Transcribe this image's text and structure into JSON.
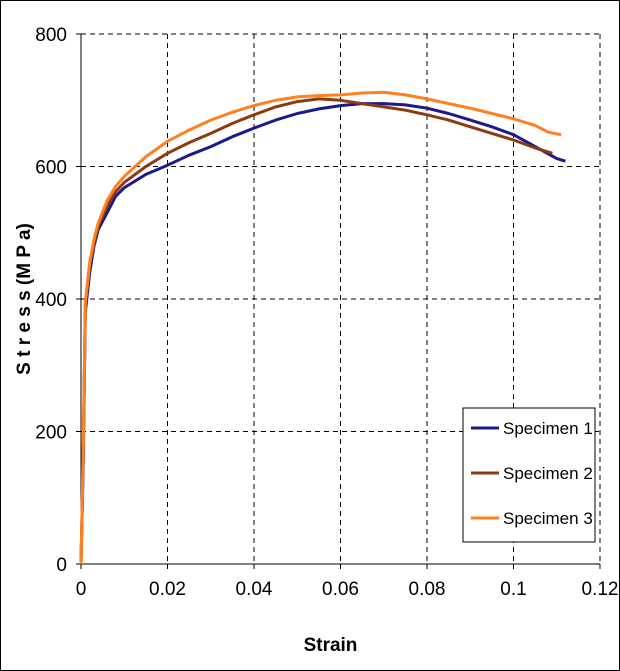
{
  "chart_data": {
    "type": "line",
    "title": "",
    "xlabel": "Strain",
    "ylabel": "S t r e s s (M P a)",
    "xlim": [
      0,
      0.12
    ],
    "ylim": [
      0,
      800
    ],
    "x_ticks": [
      0,
      0.02,
      0.04,
      0.06,
      0.08,
      0.1,
      0.12
    ],
    "y_ticks": [
      0,
      200,
      400,
      600,
      800
    ],
    "x_tick_labels": [
      "0",
      "0.02",
      "0.04",
      "0.06",
      "0.08",
      "0.1",
      "0.12"
    ],
    "y_tick_labels": [
      "0",
      "200",
      "400",
      "600",
      "800"
    ],
    "grid": true,
    "legend_position": "bottom-right",
    "series": [
      {
        "name": "Specimen 1",
        "color": "#1a1a8c",
        "points": [
          [
            0,
            0
          ],
          [
            0.0005,
            150
          ],
          [
            0.001,
            380
          ],
          [
            0.002,
            440
          ],
          [
            0.003,
            480
          ],
          [
            0.004,
            505
          ],
          [
            0.006,
            530
          ],
          [
            0.008,
            555
          ],
          [
            0.01,
            568
          ],
          [
            0.015,
            588
          ],
          [
            0.02,
            602
          ],
          [
            0.025,
            617
          ],
          [
            0.03,
            630
          ],
          [
            0.035,
            645
          ],
          [
            0.04,
            658
          ],
          [
            0.045,
            670
          ],
          [
            0.05,
            680
          ],
          [
            0.055,
            687
          ],
          [
            0.06,
            692
          ],
          [
            0.065,
            695
          ],
          [
            0.07,
            695
          ],
          [
            0.075,
            693
          ],
          [
            0.08,
            688
          ],
          [
            0.085,
            680
          ],
          [
            0.09,
            670
          ],
          [
            0.095,
            660
          ],
          [
            0.1,
            648
          ],
          [
            0.105,
            630
          ],
          [
            0.11,
            612
          ],
          [
            0.112,
            608
          ]
        ]
      },
      {
        "name": "Specimen 2",
        "color": "#8c3a10",
        "points": [
          [
            0,
            0
          ],
          [
            0.0005,
            160
          ],
          [
            0.001,
            390
          ],
          [
            0.002,
            450
          ],
          [
            0.003,
            485
          ],
          [
            0.004,
            510
          ],
          [
            0.006,
            540
          ],
          [
            0.008,
            562
          ],
          [
            0.01,
            576
          ],
          [
            0.015,
            600
          ],
          [
            0.02,
            620
          ],
          [
            0.025,
            636
          ],
          [
            0.03,
            650
          ],
          [
            0.035,
            665
          ],
          [
            0.04,
            678
          ],
          [
            0.045,
            690
          ],
          [
            0.05,
            698
          ],
          [
            0.055,
            702
          ],
          [
            0.06,
            700
          ],
          [
            0.065,
            695
          ],
          [
            0.07,
            690
          ],
          [
            0.075,
            685
          ],
          [
            0.08,
            678
          ],
          [
            0.085,
            670
          ],
          [
            0.09,
            660
          ],
          [
            0.095,
            650
          ],
          [
            0.1,
            640
          ],
          [
            0.105,
            628
          ],
          [
            0.109,
            620
          ]
        ]
      },
      {
        "name": "Specimen 3",
        "color": "#ff8020",
        "points": [
          [
            0,
            0
          ],
          [
            0.0005,
            170
          ],
          [
            0.001,
            395
          ],
          [
            0.002,
            455
          ],
          [
            0.003,
            490
          ],
          [
            0.004,
            515
          ],
          [
            0.006,
            548
          ],
          [
            0.008,
            570
          ],
          [
            0.01,
            585
          ],
          [
            0.015,
            615
          ],
          [
            0.02,
            638
          ],
          [
            0.025,
            655
          ],
          [
            0.03,
            670
          ],
          [
            0.035,
            682
          ],
          [
            0.04,
            692
          ],
          [
            0.045,
            700
          ],
          [
            0.05,
            705
          ],
          [
            0.055,
            707
          ],
          [
            0.06,
            708
          ],
          [
            0.065,
            711
          ],
          [
            0.07,
            712
          ],
          [
            0.075,
            708
          ],
          [
            0.08,
            702
          ],
          [
            0.085,
            695
          ],
          [
            0.09,
            688
          ],
          [
            0.095,
            680
          ],
          [
            0.1,
            672
          ],
          [
            0.105,
            662
          ],
          [
            0.108,
            652
          ],
          [
            0.111,
            648
          ]
        ]
      }
    ]
  }
}
